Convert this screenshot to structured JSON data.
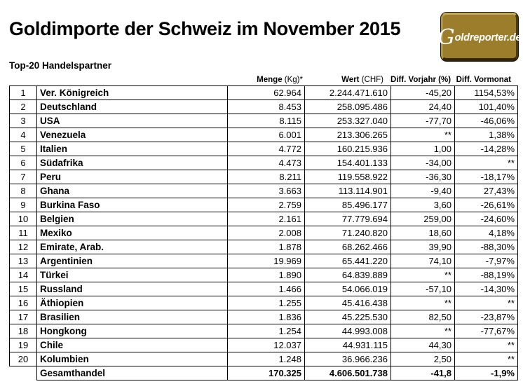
{
  "page": {
    "title": "Goldimporte der Schweiz im November 2015",
    "subtitle": "Top-20 Handelspartner"
  },
  "logo": {
    "name": "Goldreporter.de",
    "text_g": "G",
    "text_rest": "oldreporter.de",
    "gold_color": "#9b7d2b",
    "text_color": "#ffffff"
  },
  "colors": {
    "text": "#000000",
    "background": "#ffffff",
    "table_border": "#000000"
  },
  "table": {
    "headers": {
      "menge_bold": "Menge",
      "menge_rest": " (Kg)*",
      "wert_bold": "Wert",
      "wert_rest": " (CHF)",
      "vorjahr": "Diff. Vorjahr (%)",
      "vormonat": "Diff. Vormonat"
    },
    "rows": [
      {
        "rank": "1",
        "country": "Ver. Königreich",
        "menge": "62.964",
        "wert": "2.244.471.610",
        "vorjahr": "-45,20",
        "vormonat": "1154,53%"
      },
      {
        "rank": "2",
        "country": "Deutschland",
        "menge": "8.453",
        "wert": "258.095.486",
        "vorjahr": "24,40",
        "vormonat": "101,40%"
      },
      {
        "rank": "3",
        "country": "USA",
        "menge": "8.115",
        "wert": "253.327.040",
        "vorjahr": "-77,70",
        "vormonat": "-46,06%"
      },
      {
        "rank": "4",
        "country": "Venezuela",
        "menge": "6.001",
        "wert": "213.306.265",
        "vorjahr": "**",
        "vormonat": "1,38%"
      },
      {
        "rank": "5",
        "country": "Italien",
        "menge": "4.772",
        "wert": "160.215.936",
        "vorjahr": "1,00",
        "vormonat": "-14,28%"
      },
      {
        "rank": "6",
        "country": "Südafrika",
        "menge": "4.473",
        "wert": "154.401.133",
        "vorjahr": "-34,00",
        "vormonat": "**"
      },
      {
        "rank": "7",
        "country": "Peru",
        "menge": "8.211",
        "wert": "119.558.922",
        "vorjahr": "-36,30",
        "vormonat": "-18,17%"
      },
      {
        "rank": "8",
        "country": "Ghana",
        "menge": "3.663",
        "wert": "113.114.901",
        "vorjahr": "-9,40",
        "vormonat": "27,43%"
      },
      {
        "rank": "9",
        "country": "Burkina Faso",
        "menge": "2.759",
        "wert": "85.496.177",
        "vorjahr": "3,60",
        "vormonat": "-26,61%"
      },
      {
        "rank": "10",
        "country": "Belgien",
        "menge": "2.161",
        "wert": "77.779.694",
        "vorjahr": "259,00",
        "vormonat": "-24,60%"
      },
      {
        "rank": "11",
        "country": "Mexiko",
        "menge": "2.008",
        "wert": "71.240.820",
        "vorjahr": "18,60",
        "vormonat": "4,18%"
      },
      {
        "rank": "12",
        "country": "Emirate, Arab.",
        "menge": "1.878",
        "wert": "68.262.466",
        "vorjahr": "39,90",
        "vormonat": "-88,30%"
      },
      {
        "rank": "13",
        "country": "Argentinien",
        "menge": "19.969",
        "wert": "65.441.220",
        "vorjahr": "74,10",
        "vormonat": "-7,97%"
      },
      {
        "rank": "14",
        "country": "Türkei",
        "menge": "1.890",
        "wert": "64.839.889",
        "vorjahr": "**",
        "vormonat": "-88,19%"
      },
      {
        "rank": "15",
        "country": "Russland",
        "menge": "1.466",
        "wert": "54.066.019",
        "vorjahr": "-57,10",
        "vormonat": "-14,30%"
      },
      {
        "rank": "16",
        "country": "Äthiopien",
        "menge": "1.255",
        "wert": "45.416.438",
        "vorjahr": "**",
        "vormonat": "**"
      },
      {
        "rank": "17",
        "country": "Brasilien",
        "menge": "1.836",
        "wert": "45.225.530",
        "vorjahr": "82,50",
        "vormonat": "-23,87%"
      },
      {
        "rank": "18",
        "country": "Hongkong",
        "menge": "1.254",
        "wert": "44.993.008",
        "vorjahr": "**",
        "vormonat": "-77,67%"
      },
      {
        "rank": "19",
        "country": "Chile",
        "menge": "12.037",
        "wert": "44.931.115",
        "vorjahr": "44,30",
        "vormonat": "**"
      },
      {
        "rank": "20",
        "country": "Kolumbien",
        "menge": "1.248",
        "wert": "36.966.236",
        "vorjahr": "2,50",
        "vormonat": "**"
      }
    ],
    "total": {
      "label": "Gesamthandel",
      "menge": "170.325",
      "wert": "4.606.501.738",
      "vorjahr": "-41,8",
      "vormonat": "-1,9%"
    }
  }
}
